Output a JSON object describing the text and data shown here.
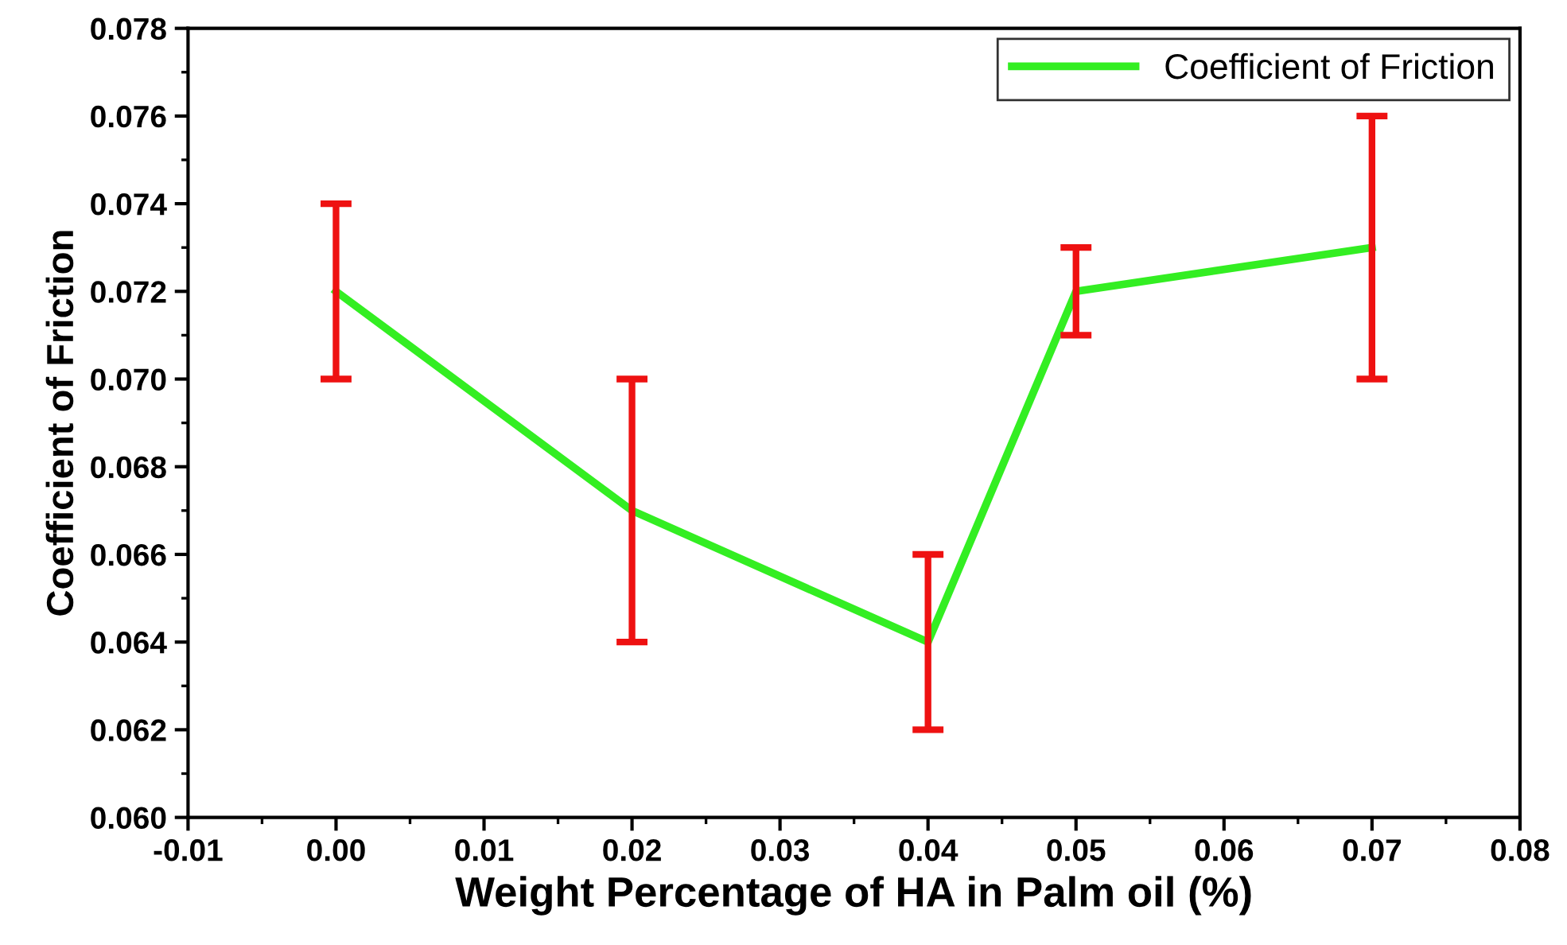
{
  "chart_data": {
    "type": "line",
    "xlabel": "Weight Percentage of HA in Palm oil (%)",
    "ylabel": "Coefficient of Friction",
    "x": [
      0,
      0.02,
      0.04,
      0.05,
      0.07
    ],
    "series": [
      {
        "name": "Coefficient of Friction",
        "color": "#33ee22",
        "values": [
          0.072,
          0.067,
          0.064,
          0.072,
          0.073
        ],
        "errors": [
          0.002,
          0.003,
          0.002,
          0.001,
          0.003
        ]
      }
    ],
    "xlim": [
      -0.01,
      0.08
    ],
    "xticks": [
      {
        "value": -0.01,
        "label": "-0.01"
      },
      {
        "value": 0,
        "label": "0.00"
      },
      {
        "value": 0.01,
        "label": "0.01"
      },
      {
        "value": 0.02,
        "label": "0.02"
      },
      {
        "value": 0.03,
        "label": "0.03"
      },
      {
        "value": 0.04,
        "label": "0.04"
      },
      {
        "value": 0.05,
        "label": "0.05"
      },
      {
        "value": 0.06,
        "label": "0.06"
      },
      {
        "value": 0.07,
        "label": "0.07"
      },
      {
        "value": 0.08,
        "label": "0.08"
      }
    ],
    "ylim": [
      0.06,
      0.078
    ],
    "yticks": [
      {
        "value": 0.06,
        "label": "0.060"
      },
      {
        "value": 0.062,
        "label": "0.062"
      },
      {
        "value": 0.064,
        "label": "0.064"
      },
      {
        "value": 0.066,
        "label": "0.066"
      },
      {
        "value": 0.068,
        "label": "0.068"
      },
      {
        "value": 0.07,
        "label": "0.070"
      },
      {
        "value": 0.072,
        "label": "0.072"
      },
      {
        "value": 0.074,
        "label": "0.074"
      },
      {
        "value": 0.076,
        "label": "0.076"
      },
      {
        "value": 0.078,
        "label": "0.078"
      }
    ],
    "legend": "top right",
    "grid": false,
    "marker": "none",
    "line_style": "solid"
  }
}
